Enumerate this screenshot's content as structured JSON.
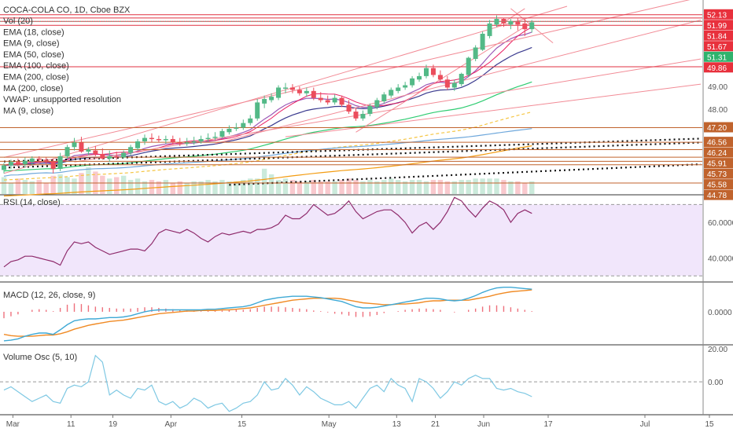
{
  "colors": {
    "up": "#53b987",
    "down": "#eb4d5c",
    "rsi_line": "#8e2a6b",
    "rsi_band": "#f1e6fb",
    "macd_line": "#3fa9d5",
    "signal_line": "#f08a24",
    "vol_osc_line": "#7ec8e3",
    "ema18": "#3b3b8f",
    "ema9": "#9b59b6",
    "ema50": "#2ecc71",
    "ema100": "#f5c542",
    "ema200": "#f39c12",
    "ma200": "#6fa8dc",
    "ma9": "#e91e63",
    "trend_red": "#f28b96",
    "hline_red": "#e03040",
    "hline_orange": "#c0632d",
    "label_red": "#e8303c",
    "label_green": "#2fb36d",
    "label_orange": "#c0632d"
  },
  "legend": {
    "title": "COCA-COLA CO, 1D, Cboe BZX",
    "items": [
      "Vol (20)",
      "EMA (18, close)",
      "EMA (9, close)",
      "EMA (50, close)",
      "EMA (100, close)",
      "EMA (200, close)",
      "MA (200, close)",
      "VWAP: unsupported resolution",
      "MA (9, close)"
    ]
  },
  "price_labels": [
    {
      "text": "52.13",
      "value": 52.13,
      "color": "red"
    },
    {
      "text": "51.99",
      "value": 51.99,
      "color": "red"
    },
    {
      "text": "51.84",
      "value": 51.84,
      "color": "red"
    },
    {
      "text": "51.67",
      "value": 51.67,
      "color": "red"
    },
    {
      "text": "51.31",
      "value": 51.31,
      "color": "green"
    },
    {
      "text": "49.86",
      "value": 49.86,
      "color": "red"
    },
    {
      "text": "47.20",
      "value": 47.2,
      "color": "orange"
    },
    {
      "text": "46.56",
      "value": 46.56,
      "color": "orange"
    },
    {
      "text": "46.24",
      "value": 46.24,
      "color": "orange"
    },
    {
      "text": "45.91",
      "value": 45.91,
      "color": "orange"
    },
    {
      "text": "45.73",
      "value": 45.73,
      "color": "orange"
    },
    {
      "text": "45.58",
      "value": 45.58,
      "color": "orange"
    },
    {
      "text": "44.78",
      "value": 44.78,
      "color": "orange"
    }
  ],
  "panes": {
    "rsi": {
      "title": "RSI (14, close)",
      "ticks": [
        "60.0000",
        "40.0000"
      ]
    },
    "macd": {
      "title": "MACD (12, 26, close, 9)",
      "ticks": [
        "0.0000"
      ]
    },
    "vol_osc": {
      "title": "Volume Osc (5, 10)",
      "ticks": [
        "20.00",
        "0.00"
      ]
    }
  },
  "x_axis_labels": [
    "Mar",
    "11",
    "19",
    "Apr",
    "15",
    "May",
    "13",
    "21",
    "Jun",
    "17",
    "Jul",
    "15"
  ],
  "chart_data": [
    {
      "type": "candlestick",
      "title": "COCA-COLA CO, 1D, Cboe BZX",
      "y_ticks": [
        49.0,
        48.0
      ],
      "ylim": [
        44.3,
        52.5
      ],
      "dates": [
        "Feb-27",
        "Feb-28",
        "Mar-01",
        "Mar-04",
        "Mar-05",
        "Mar-06",
        "Mar-07",
        "Mar-08",
        "Mar-11",
        "Mar-12",
        "Mar-13",
        "Mar-14",
        "Mar-15",
        "Mar-18",
        "Mar-19",
        "Mar-20",
        "Mar-21",
        "Mar-22",
        "Mar-25",
        "Mar-26",
        "Mar-27",
        "Mar-28",
        "Mar-29",
        "Apr-01",
        "Apr-02",
        "Apr-03",
        "Apr-04",
        "Apr-05",
        "Apr-08",
        "Apr-09",
        "Apr-10",
        "Apr-11",
        "Apr-12",
        "Apr-15",
        "Apr-16",
        "Apr-17",
        "Apr-18",
        "Apr-22",
        "Apr-23",
        "Apr-24",
        "Apr-25",
        "Apr-26",
        "Apr-29",
        "Apr-30",
        "May-01",
        "May-02",
        "May-03",
        "May-06",
        "May-07",
        "May-08",
        "May-09",
        "May-10",
        "May-13",
        "May-14",
        "May-15",
        "May-16",
        "May-17",
        "May-20",
        "May-21",
        "May-22",
        "May-23",
        "May-24",
        "May-28",
        "May-29",
        "May-30",
        "May-31",
        "Jun-03",
        "Jun-04",
        "Jun-05",
        "Jun-06",
        "Jun-07",
        "Jun-10",
        "Jun-11",
        "Jun-12",
        "Jun-13",
        "Jun-14"
      ],
      "open": [
        45.35,
        45.55,
        45.7,
        45.6,
        45.7,
        45.85,
        45.8,
        45.72,
        45.4,
        45.95,
        46.35,
        46.55,
        46.15,
        46.2,
        46.05,
        45.85,
        45.95,
        45.9,
        46.1,
        46.3,
        46.6,
        46.75,
        46.7,
        46.65,
        46.7,
        46.55,
        46.5,
        46.55,
        46.6,
        46.7,
        46.75,
        46.8,
        47.0,
        47.15,
        47.2,
        47.4,
        47.6,
        48.25,
        48.4,
        48.5,
        48.9,
        48.95,
        48.85,
        48.7,
        48.8,
        48.5,
        48.4,
        48.3,
        48.5,
        48.2,
        47.9,
        47.6,
        47.8,
        48.1,
        48.35,
        48.6,
        48.8,
        48.95,
        49.05,
        49.3,
        49.45,
        49.8,
        49.5,
        49.3,
        48.95,
        49.1,
        49.5,
        50.2,
        50.6,
        51.2,
        51.7,
        51.95,
        51.7,
        51.85,
        51.75,
        51.5
      ],
      "high": [
        45.65,
        45.8,
        45.85,
        45.9,
        45.95,
        45.95,
        45.9,
        45.85,
        46.1,
        46.45,
        46.75,
        46.8,
        46.35,
        46.4,
        46.3,
        46.2,
        46.15,
        46.2,
        46.45,
        46.7,
        46.9,
        46.95,
        46.85,
        46.85,
        46.85,
        46.75,
        46.75,
        46.8,
        46.85,
        46.95,
        47.0,
        47.15,
        47.3,
        47.4,
        47.55,
        47.75,
        48.45,
        48.6,
        48.7,
        49.05,
        49.15,
        49.1,
        49.0,
        48.95,
        48.95,
        48.75,
        48.6,
        48.65,
        48.6,
        48.4,
        48.05,
        47.95,
        48.25,
        48.5,
        48.75,
        48.95,
        49.1,
        49.2,
        49.45,
        49.6,
        49.95,
        49.95,
        49.7,
        49.45,
        49.3,
        49.6,
        50.3,
        50.8,
        51.4,
        51.9,
        52.1,
        52.0,
        51.95,
        52.0,
        51.95,
        51.9
      ],
      "low": [
        45.2,
        45.4,
        45.5,
        45.45,
        45.55,
        45.7,
        45.6,
        45.2,
        45.3,
        45.85,
        46.2,
        46.1,
        46.0,
        45.95,
        45.8,
        45.7,
        45.8,
        45.85,
        46.0,
        46.2,
        46.45,
        46.55,
        46.55,
        46.5,
        46.45,
        46.4,
        46.4,
        46.45,
        46.5,
        46.6,
        46.65,
        46.75,
        46.9,
        47.05,
        47.1,
        47.3,
        47.5,
        48.05,
        48.3,
        48.4,
        48.7,
        48.7,
        48.6,
        48.55,
        48.4,
        48.3,
        48.2,
        48.2,
        48.1,
        47.8,
        47.5,
        47.5,
        47.7,
        48.0,
        48.25,
        48.5,
        48.7,
        48.85,
        48.95,
        49.2,
        49.35,
        49.4,
        49.2,
        48.85,
        48.8,
        49.0,
        49.4,
        50.1,
        50.55,
        51.1,
        51.6,
        51.6,
        51.5,
        51.45,
        51.2,
        51.35
      ],
      "close": [
        45.55,
        45.7,
        45.6,
        45.75,
        45.85,
        45.8,
        45.75,
        45.4,
        45.95,
        46.35,
        46.55,
        46.15,
        46.25,
        46.05,
        45.85,
        45.95,
        45.9,
        46.1,
        46.35,
        46.6,
        46.75,
        46.7,
        46.65,
        46.7,
        46.55,
        46.5,
        46.55,
        46.6,
        46.7,
        46.75,
        46.8,
        47.05,
        47.15,
        47.2,
        47.4,
        47.6,
        48.3,
        48.45,
        48.55,
        48.95,
        48.95,
        48.85,
        48.7,
        48.8,
        48.5,
        48.4,
        48.3,
        48.5,
        48.2,
        47.9,
        47.6,
        47.8,
        48.15,
        48.4,
        48.65,
        48.85,
        48.95,
        49.05,
        49.35,
        49.45,
        49.8,
        49.5,
        49.3,
        48.95,
        49.15,
        49.55,
        50.25,
        50.7,
        51.3,
        51.75,
        51.95,
        51.75,
        51.85,
        51.7,
        51.5,
        51.8
      ],
      "volume": [
        6.0,
        4.0,
        5.5,
        5.0,
        4.5,
        5.0,
        4.0,
        6.5,
        7.0,
        6.0,
        5.5,
        7.5,
        9.5,
        8.0,
        6.5,
        5.5,
        6.0,
        6.5,
        5.0,
        5.5,
        4.5,
        5.0,
        4.5,
        5.0,
        4.0,
        4.5,
        4.0,
        4.5,
        4.5,
        5.0,
        4.5,
        5.0,
        4.5,
        4.5,
        5.0,
        5.5,
        5.5,
        9.0,
        7.0,
        5.0,
        5.5,
        5.0,
        4.5,
        4.5,
        5.0,
        4.5,
        4.5,
        4.5,
        5.0,
        5.5,
        5.0,
        4.5,
        5.0,
        4.5,
        5.0,
        5.5,
        5.0,
        4.5,
        5.0,
        5.0,
        4.5,
        5.0,
        5.0,
        4.5,
        4.5,
        5.0,
        5.0,
        5.5,
        5.5,
        5.5,
        5.5,
        5.0,
        4.5,
        4.5,
        4.0,
        4.5
      ],
      "horizontal_levels": [
        52.13,
        51.99,
        51.84,
        51.67,
        49.86,
        47.2,
        46.56,
        46.24,
        45.91,
        45.73,
        45.58,
        44.78
      ]
    },
    {
      "type": "line",
      "title": "RSI (14, close)",
      "ylim": [
        27,
        75
      ],
      "y_ticks": [
        60,
        40
      ],
      "band": [
        30,
        70
      ],
      "values": [
        35,
        38,
        39,
        41,
        41,
        40,
        39,
        38,
        36,
        44,
        49,
        48,
        49,
        46,
        44,
        42,
        43,
        44,
        45,
        45,
        44,
        48,
        54,
        56,
        55,
        54,
        56,
        54,
        51,
        49,
        52,
        54,
        53,
        54,
        55,
        54,
        56,
        56,
        57,
        59,
        64,
        62,
        62,
        65,
        70,
        67,
        64,
        65,
        68,
        72,
        66,
        62,
        64,
        66,
        67,
        67,
        64,
        60,
        54,
        58,
        60,
        56,
        60,
        66,
        74,
        72,
        67,
        63,
        68,
        72,
        70,
        67,
        60,
        65,
        67,
        65
      ]
    },
    {
      "type": "line",
      "title": "MACD (12, 26, close, 9)",
      "ylim": [
        -0.5,
        0.45
      ],
      "y_ticks": [
        0
      ],
      "series": [
        {
          "name": "MACD",
          "values": [
            -0.45,
            -0.44,
            -0.42,
            -0.38,
            -0.35,
            -0.33,
            -0.33,
            -0.35,
            -0.28,
            -0.2,
            -0.14,
            -0.12,
            -0.11,
            -0.11,
            -0.1,
            -0.09,
            -0.09,
            -0.08,
            -0.06,
            -0.03,
            0.0,
            0.02,
            0.03,
            0.03,
            0.03,
            0.03,
            0.03,
            0.03,
            0.03,
            0.04,
            0.04,
            0.05,
            0.06,
            0.07,
            0.08,
            0.1,
            0.14,
            0.18,
            0.2,
            0.22,
            0.23,
            0.24,
            0.24,
            0.24,
            0.23,
            0.22,
            0.2,
            0.18,
            0.16,
            0.12,
            0.08,
            0.06,
            0.06,
            0.07,
            0.09,
            0.11,
            0.13,
            0.15,
            0.17,
            0.19,
            0.21,
            0.21,
            0.2,
            0.18,
            0.17,
            0.18,
            0.21,
            0.25,
            0.3,
            0.34,
            0.37,
            0.38,
            0.38,
            0.37,
            0.36,
            0.35
          ]
        },
        {
          "name": "Signal",
          "values": [
            -0.35,
            -0.37,
            -0.38,
            -0.38,
            -0.38,
            -0.37,
            -0.36,
            -0.36,
            -0.34,
            -0.31,
            -0.27,
            -0.24,
            -0.21,
            -0.19,
            -0.17,
            -0.15,
            -0.14,
            -0.13,
            -0.11,
            -0.09,
            -0.07,
            -0.05,
            -0.03,
            -0.02,
            -0.01,
            0.0,
            0.01,
            0.01,
            0.02,
            0.02,
            0.02,
            0.03,
            0.03,
            0.04,
            0.05,
            0.06,
            0.08,
            0.1,
            0.12,
            0.14,
            0.16,
            0.18,
            0.19,
            0.2,
            0.21,
            0.21,
            0.21,
            0.21,
            0.2,
            0.18,
            0.16,
            0.14,
            0.13,
            0.12,
            0.11,
            0.11,
            0.12,
            0.12,
            0.13,
            0.14,
            0.16,
            0.17,
            0.17,
            0.18,
            0.18,
            0.18,
            0.18,
            0.2,
            0.22,
            0.24,
            0.27,
            0.29,
            0.31,
            0.32,
            0.33,
            0.34
          ]
        }
      ]
    },
    {
      "type": "line",
      "title": "Volume Osc (5, 10)",
      "ylim": [
        -20,
        22
      ],
      "y_ticks": [
        20,
        0
      ],
      "values": [
        -5,
        -3,
        -6,
        -9,
        -12,
        -10,
        -8,
        -12,
        -13,
        -4,
        -2,
        -3,
        0,
        16,
        12,
        -8,
        -5,
        -8,
        -10,
        -4,
        -5,
        -2,
        -12,
        -14,
        -12,
        -16,
        -14,
        -10,
        -12,
        -16,
        -14,
        -13,
        -18,
        -16,
        -13,
        -12,
        -8,
        0,
        -5,
        -4,
        2,
        -2,
        -8,
        -3,
        -6,
        -10,
        -12,
        -14,
        -14,
        -12,
        -16,
        -10,
        -4,
        -2,
        -6,
        2,
        -2,
        -4,
        -12,
        2,
        0,
        -4,
        -10,
        -6,
        0,
        -2,
        2,
        4,
        2,
        2,
        -4,
        -5,
        -4,
        -6,
        -7,
        -9
      ]
    }
  ]
}
